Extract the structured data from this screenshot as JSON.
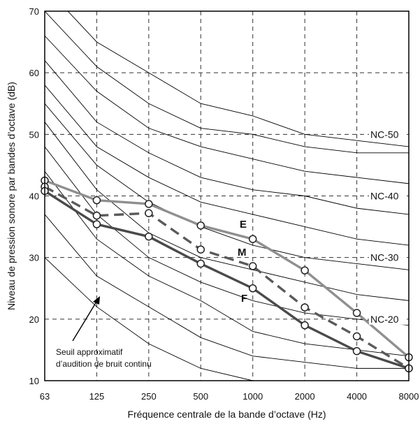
{
  "chart_data": {
    "type": "line",
    "xlabel": "Fréquence centrale de la bande d’octave (Hz)",
    "ylabel": "Niveau de pression sonore par bandes d’octave (dB)",
    "x_categories": [
      "63",
      "125",
      "250",
      "500",
      "1000",
      "2000",
      "4000",
      "8000"
    ],
    "ylim": [
      10,
      70
    ],
    "y_ticks": [
      "10",
      "20",
      "30",
      "40",
      "50",
      "60",
      "70"
    ],
    "grid": true,
    "nc_curves": [
      {
        "values": [
          30,
          22,
          16,
          12,
          10,
          9,
          8,
          8
        ]
      },
      {
        "values": [
          37,
          27,
          22,
          17,
          14,
          13,
          12,
          12
        ]
      },
      {
        "values": [
          44,
          33,
          27,
          23,
          18,
          16,
          15,
          14
        ]
      },
      {
        "values": [
          48,
          37,
          30,
          26,
          23,
          21,
          20,
          19
        ]
      },
      {
        "values": [
          52,
          41,
          34,
          30,
          28,
          26,
          24,
          23
        ]
      },
      {
        "values": [
          55,
          45,
          39,
          35,
          32,
          30,
          29,
          28
        ]
      },
      {
        "values": [
          58,
          48,
          43,
          39,
          37,
          35,
          33,
          32
        ]
      },
      {
        "values": [
          62,
          52,
          47,
          43,
          41,
          40,
          38,
          37
        ]
      },
      {
        "values": [
          66,
          57,
          51,
          48,
          46,
          44,
          43,
          42
        ]
      },
      {
        "values": [
          70,
          61,
          55,
          51,
          50,
          48,
          47,
          47
        ]
      },
      {
        "values": [
          74,
          65,
          60,
          55,
          53,
          50,
          49,
          48
        ]
      }
    ],
    "nc_labels": [
      {
        "text": "NC-50",
        "value": 50
      },
      {
        "text": "NC-40",
        "value": 40
      },
      {
        "text": "NC-30",
        "value": 30
      },
      {
        "text": "NC-20",
        "value": 20
      }
    ],
    "series": [
      {
        "name": "E",
        "color": "#8f8f8f",
        "dashed": false,
        "values": [
          42.5,
          39.3,
          38.7,
          35.2,
          33.0,
          27.9,
          21.0,
          13.8
        ]
      },
      {
        "name": "M",
        "color": "#5a5a5a",
        "dashed": true,
        "values": [
          41.5,
          36.8,
          37.2,
          31.3,
          28.6,
          21.9,
          17.2,
          12.0
        ]
      },
      {
        "name": "F",
        "color": "#4a4a4a",
        "dashed": false,
        "values": [
          40.8,
          35.4,
          33.4,
          29.0,
          25.0,
          19.0,
          14.8,
          12.0
        ]
      }
    ],
    "annotation": {
      "line1": "Seuil approximatif",
      "line2": "d’audition de bruit continu"
    }
  }
}
